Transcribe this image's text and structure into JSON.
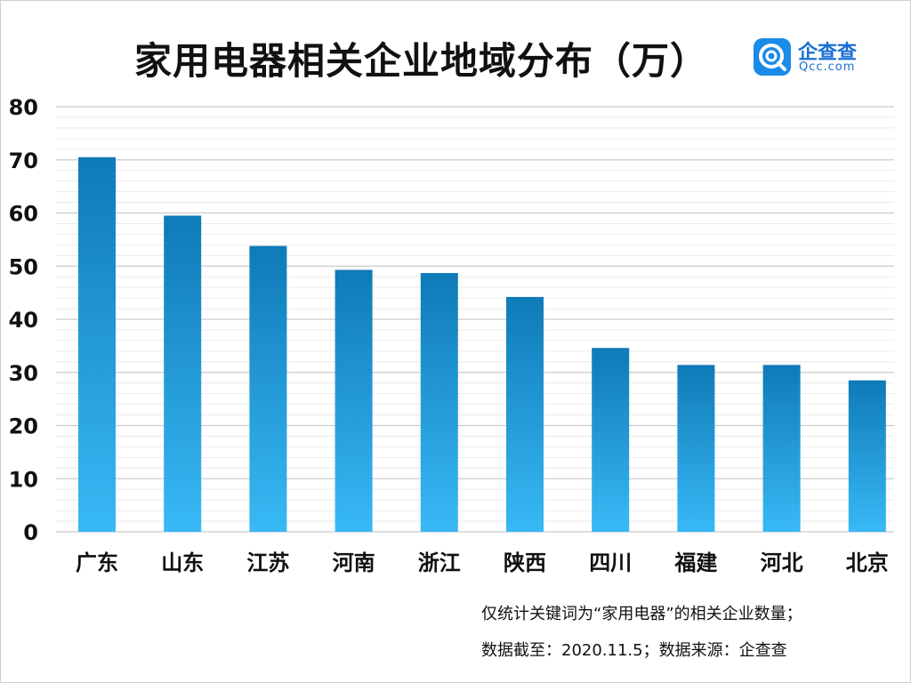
{
  "chart_data": {
    "type": "bar",
    "title": "家用电器相关企业地域分布（万）",
    "categories": [
      "广东",
      "山东",
      "江苏",
      "河南",
      "浙江",
      "陕西",
      "四川",
      "福建",
      "河北",
      "北京"
    ],
    "values": [
      70.5,
      59.5,
      53.8,
      49.3,
      48.7,
      44.2,
      34.6,
      31.4,
      31.4,
      28.5
    ],
    "ylim": [
      0,
      80
    ],
    "yticks": [
      0,
      10,
      20,
      30,
      40,
      50,
      60,
      70,
      80
    ],
    "grid": true,
    "legend": "none",
    "xlabel": "",
    "ylabel": ""
  },
  "colors": {
    "bar_top": "#0f7ab8",
    "bar_bottom": "#38b9f5",
    "grid": "#d9d9d9",
    "axis_text": "#111111",
    "brand": "#1a8be8"
  },
  "logo": {
    "name": "企查查",
    "domain": "Qcc.com",
    "icon": "qcc-logo-icon"
  },
  "notes": {
    "line1": "仅统计关键词为“家用电器”的相关企业数量；",
    "line2": "数据截至：2020.11.5；数据来源：企查查"
  }
}
